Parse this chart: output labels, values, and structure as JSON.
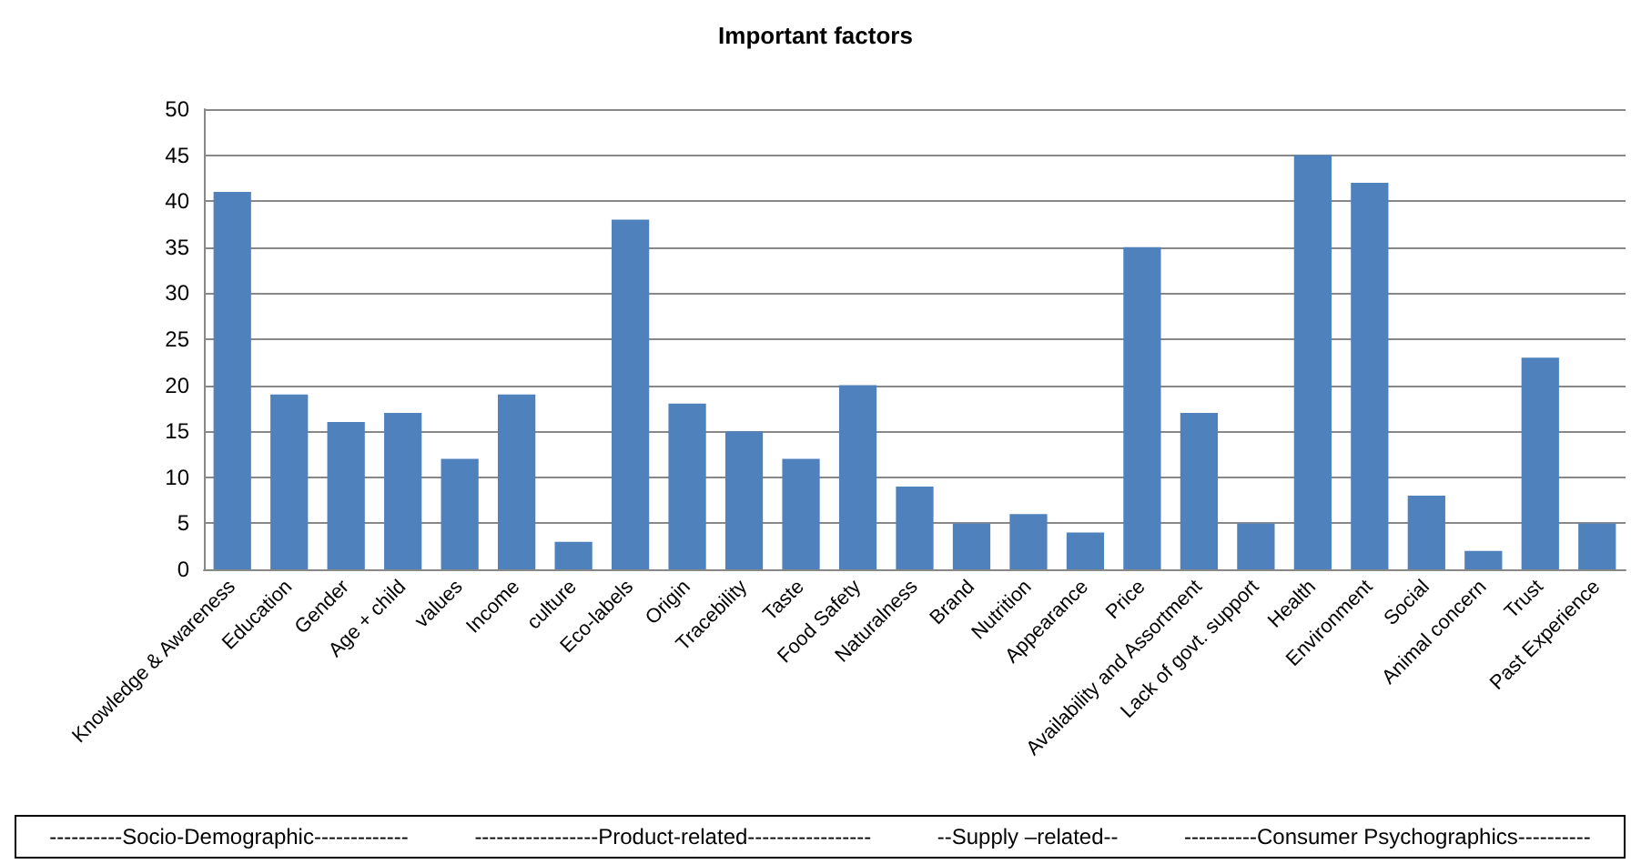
{
  "chart_data": {
    "type": "bar",
    "title": "Important factors",
    "categories": [
      "Knowledge & Awareness",
      "Education",
      "Gender",
      "Age + child",
      "values",
      "Income",
      "culture",
      "Eco-labels",
      "Origin",
      "Tracebility",
      "Taste",
      "Food Safety",
      "Naturalness",
      "Brand",
      "Nutrition",
      "Appearance",
      "Price",
      "Availability and Assortment",
      "Lack of govt. support",
      "Health",
      "Environment",
      "Social",
      "Animal concern",
      "Trust",
      "Past Experience"
    ],
    "values": [
      41,
      19,
      16,
      17,
      12,
      19,
      3,
      38,
      18,
      15,
      12,
      20,
      9,
      5,
      6,
      4,
      35,
      17,
      5,
      45,
      42,
      8,
      2,
      23,
      5
    ],
    "color": "#4f81bd",
    "ylim": [
      0,
      50
    ],
    "yticks": [
      0,
      5,
      10,
      15,
      20,
      25,
      30,
      35,
      40,
      45,
      50
    ],
    "grid": "y",
    "annotations": [
      "----------Socio-Demographic-------------",
      "-----------------Product-related-----------------",
      "--Supply –related--",
      "----------Consumer Psychographics----------"
    ]
  }
}
